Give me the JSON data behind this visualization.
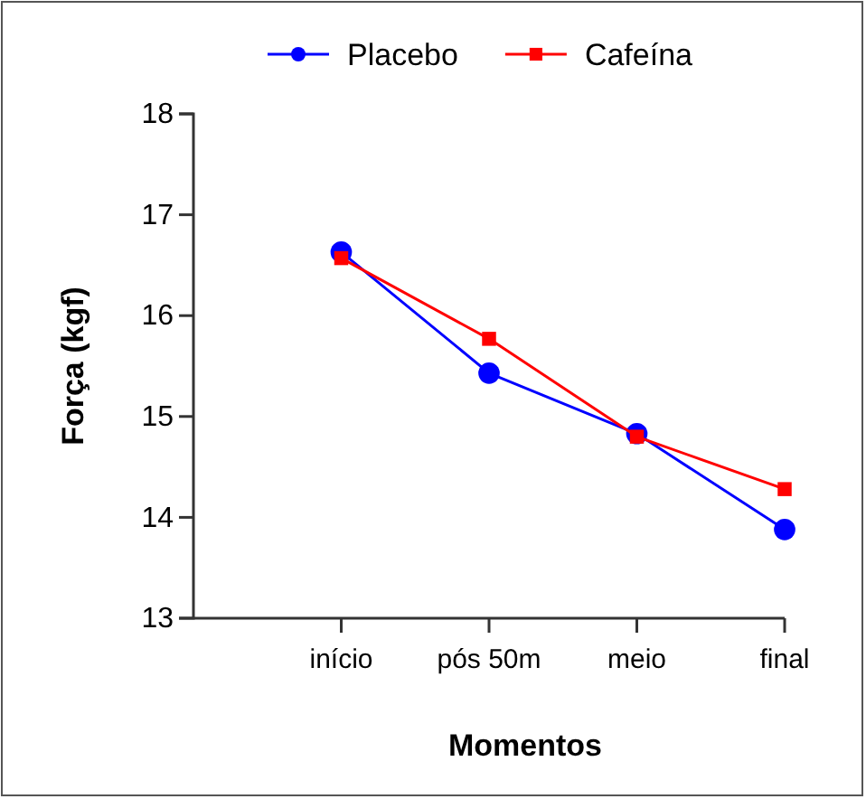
{
  "chart_data": {
    "type": "line",
    "xlabel": "Momentos",
    "ylabel": "Força (kgf)",
    "categories": [
      "início",
      "pós 50m",
      "meio",
      "final"
    ],
    "series": [
      {
        "name": "Placebo",
        "color": "#0000ff",
        "marker": "circle",
        "values": [
          16.63,
          15.43,
          14.83,
          13.88
        ]
      },
      {
        "name": "Cafeína",
        "color": "#ff0000",
        "marker": "square",
        "values": [
          16.57,
          15.77,
          14.8,
          14.28
        ]
      }
    ],
    "ylim": [
      13,
      18
    ],
    "yticks": [
      13,
      14,
      15,
      16,
      17,
      18
    ],
    "grid": false,
    "legend": "top"
  }
}
